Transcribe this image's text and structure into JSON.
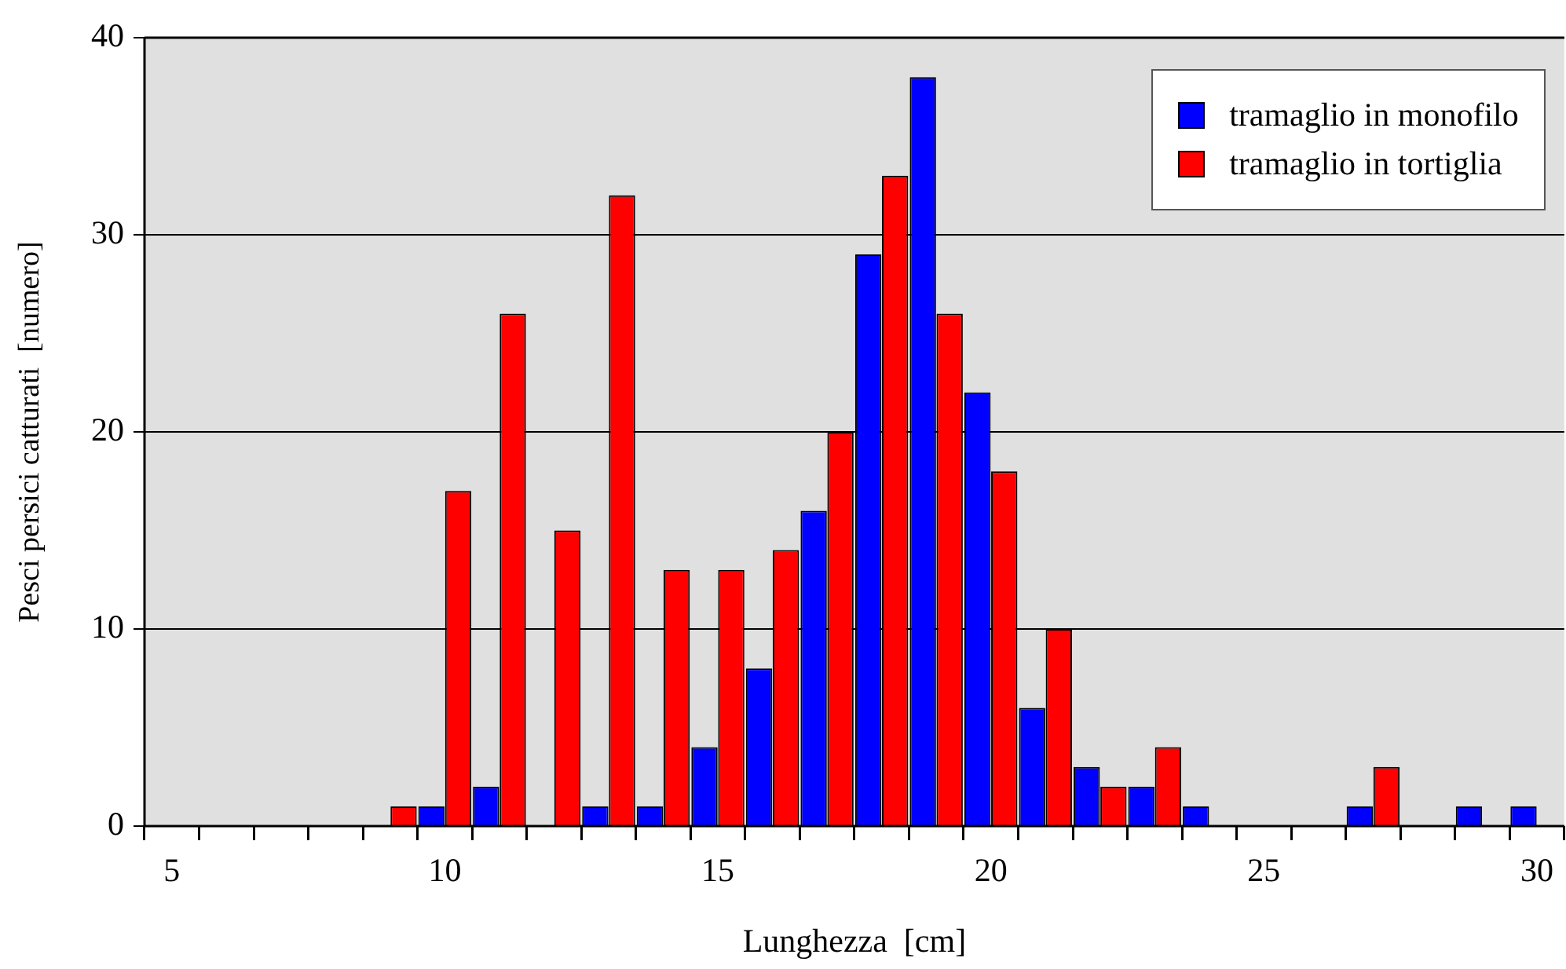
{
  "chart_data": {
    "type": "bar",
    "xlabel": "Lunghezza  [cm]",
    "ylabel": "Pesci persici catturati  [numero]",
    "categories": [
      "5",
      null,
      null,
      null,
      null,
      "10",
      null,
      null,
      null,
      null,
      "15",
      null,
      null,
      null,
      null,
      "20",
      null,
      null,
      null,
      null,
      "25",
      null,
      null,
      null,
      null,
      "30"
    ],
    "series": [
      {
        "name": "tramaglio in monofilo",
        "color": "#0000ff",
        "values": [
          0,
          0,
          0,
          0,
          0,
          1,
          2,
          0,
          1,
          1,
          4,
          8,
          16,
          29,
          38,
          22,
          6,
          3,
          2,
          1,
          0,
          0,
          1,
          0,
          1,
          1
        ]
      },
      {
        "name": "tramaglio in tortiglia",
        "color": "#ff0000",
        "values": [
          0,
          0,
          0,
          0,
          1,
          17,
          26,
          15,
          32,
          13,
          13,
          14,
          20,
          33,
          26,
          18,
          10,
          2,
          4,
          0,
          0,
          0,
          3,
          0,
          0,
          0
        ]
      }
    ],
    "ylim": [
      0,
      40
    ],
    "yticks": [
      0,
      10,
      20,
      30,
      40
    ],
    "grid": "y",
    "legend": "top right"
  }
}
